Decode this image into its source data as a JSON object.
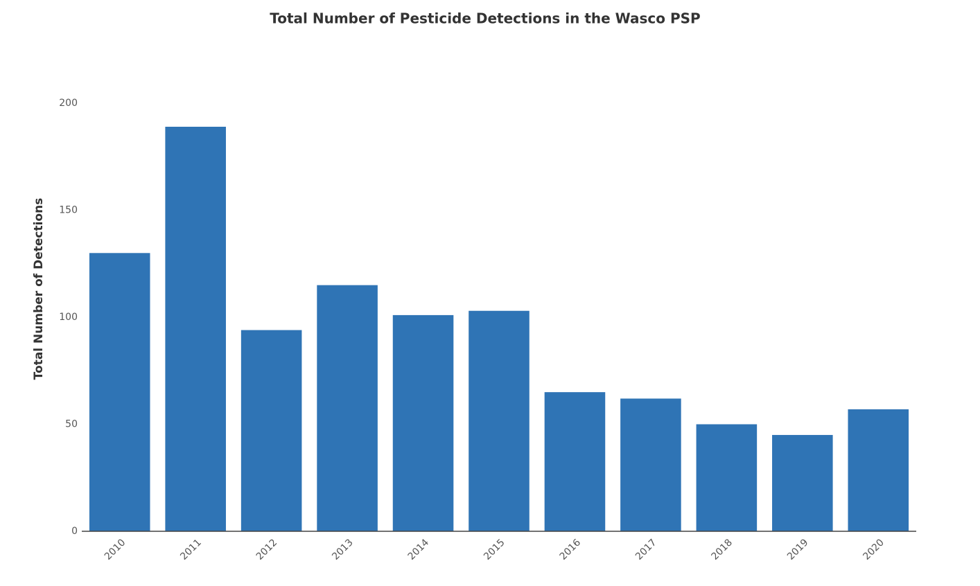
{
  "chart_data": {
    "type": "bar",
    "title": "Total Number of Pesticide Detections in the Wasco PSP",
    "y_label": "Total Number of Detections",
    "categories": [
      "2010",
      "2011",
      "2012",
      "2013",
      "2014",
      "2015",
      "2016",
      "2017",
      "2018",
      "2019",
      "2020"
    ],
    "values": [
      130,
      189,
      94,
      115,
      101,
      103,
      65,
      62,
      50,
      45,
      57
    ],
    "color": "#2f74b5",
    "ylim": [
      0,
      200
    ],
    "yticks": [
      0,
      50,
      100,
      150,
      200
    ],
    "grid": false
  }
}
